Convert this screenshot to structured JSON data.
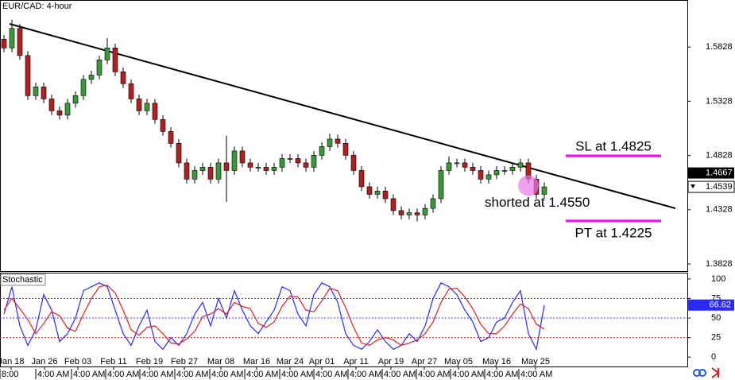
{
  "chart_data": [
    {
      "type": "candlestick",
      "title": "EUR/CAD: 4-hour",
      "open": [
        1.59,
        1.582,
        1.6,
        1.575,
        1.538,
        1.546,
        1.535,
        1.524,
        1.52,
        1.531,
        1.538,
        1.553,
        1.557,
        1.571,
        1.582,
        1.56,
        1.549,
        1.535,
        1.524,
        1.531,
        1.516,
        1.505,
        1.494,
        1.476,
        1.461,
        1.469,
        1.472,
        1.461,
        1.476,
        1.469,
        1.487,
        1.476,
        1.472,
        1.472,
        1.469,
        1.472,
        1.48,
        1.48,
        1.476,
        1.472,
        1.483,
        1.491,
        1.498,
        1.494,
        1.483,
        1.469,
        1.454,
        1.447,
        1.45,
        1.443,
        1.432,
        1.428,
        1.43,
        1.428,
        1.434,
        1.443,
        1.469,
        1.476,
        1.476,
        1.472,
        1.469,
        1.461,
        1.465,
        1.469,
        1.469,
        1.472,
        1.476,
        1.461,
        1.447
      ],
      "high": [
        1.594,
        1.608,
        1.604,
        1.579,
        1.55,
        1.55,
        1.539,
        1.528,
        1.535,
        1.542,
        1.557,
        1.561,
        1.575,
        1.591,
        1.586,
        1.564,
        1.553,
        1.539,
        1.535,
        1.535,
        1.52,
        1.509,
        1.498,
        1.48,
        1.473,
        1.476,
        1.476,
        1.48,
        1.501,
        1.491,
        1.491,
        1.48,
        1.476,
        1.476,
        1.476,
        1.484,
        1.484,
        1.484,
        1.48,
        1.487,
        1.495,
        1.503,
        1.502,
        1.498,
        1.487,
        1.473,
        1.458,
        1.454,
        1.454,
        1.447,
        1.436,
        1.434,
        1.434,
        1.438,
        1.447,
        1.473,
        1.482,
        1.48,
        1.48,
        1.476,
        1.473,
        1.469,
        1.473,
        1.473,
        1.476,
        1.48,
        1.48,
        1.465,
        1.458
      ],
      "low": [
        1.578,
        1.578,
        1.571,
        1.534,
        1.534,
        1.531,
        1.52,
        1.516,
        1.516,
        1.527,
        1.534,
        1.549,
        1.553,
        1.567,
        1.556,
        1.545,
        1.531,
        1.52,
        1.52,
        1.512,
        1.501,
        1.49,
        1.472,
        1.457,
        1.457,
        1.465,
        1.457,
        1.457,
        1.44,
        1.465,
        1.472,
        1.468,
        1.468,
        1.465,
        1.465,
        1.468,
        1.476,
        1.472,
        1.468,
        1.468,
        1.479,
        1.487,
        1.49,
        1.479,
        1.465,
        1.45,
        1.443,
        1.443,
        1.439,
        1.428,
        1.424,
        1.424,
        1.422,
        1.424,
        1.43,
        1.439,
        1.465,
        1.472,
        1.468,
        1.465,
        1.457,
        1.457,
        1.461,
        1.465,
        1.465,
        1.468,
        1.457,
        1.443,
        1.443
      ],
      "close": [
        1.582,
        1.6,
        1.575,
        1.538,
        1.546,
        1.535,
        1.524,
        1.52,
        1.531,
        1.538,
        1.553,
        1.557,
        1.571,
        1.582,
        1.56,
        1.549,
        1.535,
        1.524,
        1.531,
        1.516,
        1.505,
        1.494,
        1.476,
        1.461,
        1.469,
        1.472,
        1.461,
        1.476,
        1.469,
        1.487,
        1.476,
        1.472,
        1.472,
        1.469,
        1.472,
        1.48,
        1.48,
        1.476,
        1.472,
        1.483,
        1.491,
        1.498,
        1.494,
        1.483,
        1.469,
        1.454,
        1.447,
        1.45,
        1.443,
        1.432,
        1.428,
        1.43,
        1.428,
        1.434,
        1.443,
        1.469,
        1.476,
        1.476,
        1.472,
        1.469,
        1.461,
        1.465,
        1.469,
        1.469,
        1.472,
        1.476,
        1.461,
        1.447,
        1.4539
      ],
      "up_color": "#3a9a3a",
      "down_color": "#b02020",
      "xlim": [
        -0.5,
        86
      ],
      "ylim": [
        1.3755,
        1.6262
      ],
      "yticks": [
        1.5828,
        1.5328,
        1.4828,
        1.4328,
        1.3828
      ],
      "price_markers": [
        1.4667,
        1.4539
      ],
      "trendline": {
        "x": [
          0.7,
          84.5
        ],
        "y": [
          1.6042,
          1.4341
        ],
        "color": "#000000"
      },
      "annotations": [
        {
          "text": "SL at 1.4825",
          "value": 1.4825,
          "color": "#ff00ff"
        },
        {
          "text": "shorted at 1.4550",
          "value": 1.455,
          "x": 66,
          "color": "#e879e8"
        },
        {
          "text": "PT at 1.4225",
          "value": 1.4225,
          "color": "#ff00ff"
        }
      ]
    },
    {
      "type": "line",
      "title": "Stochastic",
      "series": [
        {
          "color": "#2a2aff",
          "values": [
            55,
            90,
            40,
            15,
            35,
            80,
            60,
            20,
            30,
            50,
            85,
            90,
            95,
            90,
            60,
            30,
            15,
            40,
            60,
            20,
            10,
            25,
            15,
            30,
            55,
            70,
            40,
            75,
            50,
            85,
            60,
            40,
            30,
            45,
            60,
            90,
            85,
            55,
            40,
            80,
            95,
            90,
            70,
            30,
            15,
            10,
            20,
            35,
            20,
            10,
            15,
            30,
            20,
            40,
            75,
            95,
            90,
            80,
            60,
            45,
            20,
            25,
            45,
            50,
            70,
            85,
            30,
            10,
            66.62
          ]
        },
        {
          "color": "#e02020",
          "values": [
            60,
            75,
            62,
            48,
            30,
            43,
            58,
            53,
            37,
            33,
            55,
            75,
            90,
            92,
            82,
            60,
            35,
            28,
            38,
            40,
            30,
            18,
            17,
            23,
            33,
            52,
            55,
            62,
            55,
            70,
            65,
            62,
            43,
            38,
            45,
            65,
            78,
            77,
            60,
            58,
            72,
            88,
            85,
            63,
            38,
            18,
            15,
            22,
            25,
            22,
            15,
            18,
            22,
            30,
            45,
            70,
            87,
            88,
            77,
            62,
            42,
            30,
            30,
            40,
            55,
            68,
            62,
            42,
            36
          ]
        }
      ],
      "xlim": [
        -0.5,
        86
      ],
      "ylim": [
        -13,
        107
      ],
      "yticks": [
        100,
        75,
        50,
        25,
        0
      ],
      "levels": [
        75,
        50,
        25
      ],
      "level_colors": [
        "#3a3aff",
        "#3a3aff",
        "#e02020"
      ],
      "current": 66.62,
      "xticks": [
        {
          "value": 0.9,
          "label": "Jan 18"
        },
        {
          "value": 5.1,
          "label": "Jan 26"
        },
        {
          "value": 9.3,
          "label": "Feb 03"
        },
        {
          "value": 13.8,
          "label": "Feb 11"
        },
        {
          "value": 18.3,
          "label": "Feb 19"
        },
        {
          "value": 22.7,
          "label": "Feb 27"
        },
        {
          "value": 27.3,
          "label": "Mar 08"
        },
        {
          "value": 31.8,
          "label": "Mar 16"
        },
        {
          "value": 36,
          "label": "Mar 24"
        },
        {
          "value": 40,
          "label": "Apr 01"
        },
        {
          "value": 44.3,
          "label": "Apr 11"
        },
        {
          "value": 48.7,
          "label": "Apr 19"
        },
        {
          "value": 52.9,
          "label": "Apr 27"
        },
        {
          "value": 57.2,
          "label": "May 05"
        },
        {
          "value": 62,
          "label": "May 16"
        },
        {
          "value": 66.9,
          "label": "May 25"
        }
      ],
      "xticks_time": [
        {
          "value": -0.5,
          "label": "8:00"
        },
        {
          "value": 4,
          "label": "4:00 AM"
        },
        {
          "value": 8.5,
          "label": "4:00 AM"
        },
        {
          "value": 12.8,
          "label": "4:00 AM"
        },
        {
          "value": 17.1,
          "label": "4:00 AM"
        },
        {
          "value": 21.5,
          "label": "4:00 AM"
        },
        {
          "value": 25.9,
          "label": "4:00 AM"
        },
        {
          "value": 30.3,
          "label": "4:00 AM"
        },
        {
          "value": 34.7,
          "label": "4:00 AM"
        },
        {
          "value": 39,
          "label": "4:00 AM"
        },
        {
          "value": 43.3,
          "label": "4:00 AM"
        },
        {
          "value": 47.6,
          "label": "4:00 AM"
        },
        {
          "value": 51.9,
          "label": "4:00 AM"
        },
        {
          "value": 56.2,
          "label": "4:00 AM"
        },
        {
          "value": 60.5,
          "label": "4:00 AM"
        },
        {
          "value": 64.8,
          "label": "4:00 AM"
        }
      ]
    }
  ]
}
